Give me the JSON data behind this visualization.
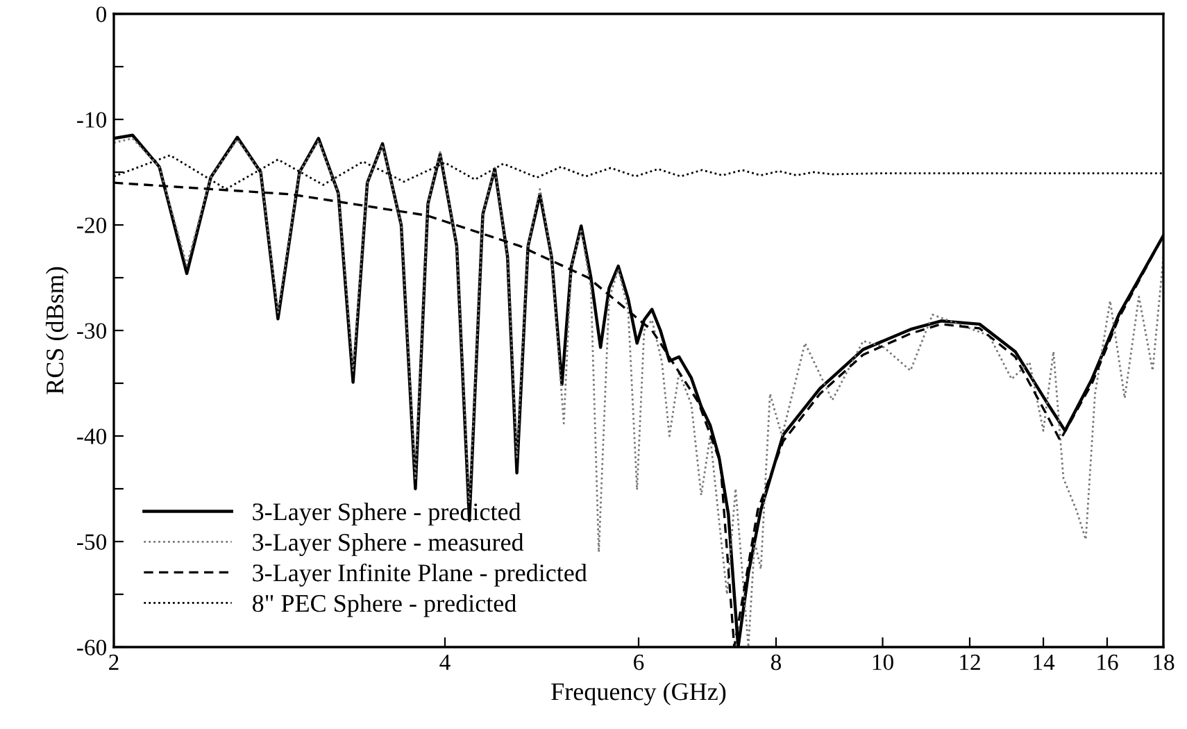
{
  "chart_data": {
    "type": "line",
    "xlabel": "Frequency (GHz)",
    "ylabel": "RCS (dBsm)",
    "log": "x",
    "xlim": [
      2,
      18
    ],
    "xticks": [
      2,
      4,
      6,
      8,
      10,
      12,
      14,
      16,
      18
    ],
    "ylim": [
      -60,
      0
    ],
    "yticks": [
      0,
      {
        "value": -5,
        "label": null
      },
      -10,
      {
        "value": -15,
        "label": null
      },
      -20,
      {
        "value": -25,
        "label": null
      },
      -30,
      {
        "value": -35,
        "label": null
      },
      -40,
      {
        "value": -45,
        "label": null
      },
      -50,
      {
        "value": -55,
        "label": null
      },
      -60
    ],
    "grid": false,
    "legend": "bottom left",
    "series": [
      {
        "name": "3-Layer Sphere - predicted",
        "color": "#000000",
        "line_style": "solid",
        "x": [
          2.0,
          2.08,
          2.2,
          2.33,
          2.45,
          2.59,
          2.72,
          2.82,
          2.95,
          3.07,
          3.2,
          3.3,
          3.4,
          3.51,
          3.65,
          3.76,
          3.86,
          3.96,
          4.1,
          4.21,
          4.33,
          4.44,
          4.56,
          4.65,
          4.76,
          4.88,
          5.0,
          5.11,
          5.21,
          5.32,
          5.43,
          5.54,
          5.64,
          5.75,
          5.87,
          5.98,
          6.07,
          6.17,
          6.28,
          6.4,
          6.53,
          6.7,
          6.84,
          6.97,
          7.1,
          7.24,
          7.39,
          7.55,
          7.75,
          8.12,
          8.77,
          9.6,
          10.6,
          11.3,
          12.25,
          13.2,
          14.1,
          14.65,
          15.5,
          16.4,
          18.0
        ],
        "values": [
          -11.8,
          -11.5,
          -14.5,
          -24.6,
          -15.5,
          -11.7,
          -15,
          -28.9,
          -15,
          -11.8,
          -17,
          -34.9,
          -16,
          -12.3,
          -20,
          -45,
          -18,
          -13.3,
          -22,
          -48,
          -19,
          -14.7,
          -23,
          -43.5,
          -22,
          -17.1,
          -23,
          -35.1,
          -24,
          -20.1,
          -25,
          -31.6,
          -26,
          -23.9,
          -27,
          -31.2,
          -29,
          -28.0,
          -30,
          -32.9,
          -32.5,
          -34.5,
          -37.2,
          -39.0,
          -42,
          -47.4,
          -60,
          -53,
          -47,
          -39.9,
          -35.5,
          -31.8,
          -29.9,
          -29.1,
          -29.4,
          -32.0,
          -36.8,
          -39.5,
          -34.6,
          -28.5,
          -21.0
        ]
      },
      {
        "name": "3-Layer Sphere - measured",
        "color": "#777777",
        "line_style": "dotted",
        "x": [
          2.0,
          2.08,
          2.2,
          2.33,
          2.45,
          2.59,
          2.72,
          2.82,
          2.95,
          3.07,
          3.2,
          3.3,
          3.4,
          3.51,
          3.65,
          3.76,
          3.86,
          3.96,
          4.1,
          4.21,
          4.33,
          4.44,
          4.56,
          4.65,
          4.76,
          4.88,
          5.0,
          5.13,
          5.21,
          5.32,
          5.43,
          5.52,
          5.64,
          5.75,
          5.87,
          5.98,
          6.07,
          6.17,
          6.3,
          6.4,
          6.53,
          6.7,
          6.84,
          6.97,
          7.1,
          7.22,
          7.35,
          7.55,
          7.65,
          7.75,
          7.9,
          8.1,
          8.5,
          9.0,
          9.6,
          10.0,
          10.6,
          11.1,
          11.8,
          12.5,
          13.1,
          13.6,
          14.0,
          14.3,
          14.6,
          15.0,
          15.3,
          15.6,
          16.1,
          16.6,
          17.1,
          17.6,
          18.0
        ],
        "values": [
          -12.2,
          -11.8,
          -14.5,
          -23.8,
          -15.5,
          -11.9,
          -15,
          -28.3,
          -15,
          -12.0,
          -17,
          -33.8,
          -16,
          -12.4,
          -20,
          -44,
          -18,
          -13.1,
          -22,
          -47,
          -19,
          -14.6,
          -23,
          -42,
          -22,
          -16.6,
          -23,
          -38.8,
          -24,
          -20.4,
          -26,
          -51.0,
          -27,
          -24.2,
          -28,
          -45.1,
          -30,
          -29.0,
          -33,
          -40.0,
          -34,
          -37,
          -45.6,
          -40,
          -48,
          -55.0,
          -45,
          -60,
          -50,
          -52.6,
          -36,
          -40,
          -31.2,
          -36.6,
          -31.0,
          -31.5,
          -33.8,
          -28.5,
          -29.5,
          -30.5,
          -34.6,
          -33,
          -39.5,
          -32.0,
          -44,
          -47.0,
          -49.8,
          -36,
          -27.2,
          -36.4,
          -26.8,
          -33.8,
          -23.0
        ]
      },
      {
        "name": "3-Layer Infinite Plane - predicted",
        "color": "#000000",
        "line_style": "dashed",
        "x": [
          2.0,
          2.9,
          3.85,
          4.68,
          5.4,
          6.17,
          6.28,
          6.8,
          7.12,
          7.33,
          7.7,
          8.12,
          8.77,
          9.6,
          10.6,
          11.3,
          12.25,
          13.2,
          14.1,
          14.5,
          15.5,
          16.4,
          18.0
        ],
        "values": [
          -16.0,
          -17.1,
          -19.1,
          -22.0,
          -25.0,
          -30.0,
          -31.2,
          -36.8,
          -42.5,
          -60,
          -47,
          -40.5,
          -36,
          -32.3,
          -30.3,
          -29.4,
          -29.8,
          -32.5,
          -38,
          -40.4,
          -35,
          -28.8,
          -21.0
        ]
      },
      {
        "name": "8\" PEC Sphere - predicted",
        "color": "#000000",
        "line_style": "dotted",
        "x": [
          2.0,
          2.25,
          2.53,
          2.82,
          3.1,
          3.37,
          3.67,
          4.0,
          4.26,
          4.52,
          4.85,
          5.1,
          5.37,
          5.66,
          5.96,
          6.25,
          6.55,
          6.85,
          7.15,
          7.45,
          7.75,
          8.05,
          8.35,
          8.65,
          9.0,
          10.0,
          12.0,
          14.0,
          16.0,
          18.0
        ],
        "values": [
          -15.4,
          -13.4,
          -16.6,
          -13.8,
          -16.2,
          -14.0,
          -15.9,
          -14.1,
          -15.7,
          -14.2,
          -15.5,
          -14.5,
          -15.4,
          -14.6,
          -15.4,
          -14.7,
          -15.4,
          -14.8,
          -15.3,
          -14.8,
          -15.3,
          -14.9,
          -15.3,
          -15.0,
          -15.2,
          -15.1,
          -15.1,
          -15.1,
          -15.1,
          -15.1
        ]
      }
    ]
  }
}
